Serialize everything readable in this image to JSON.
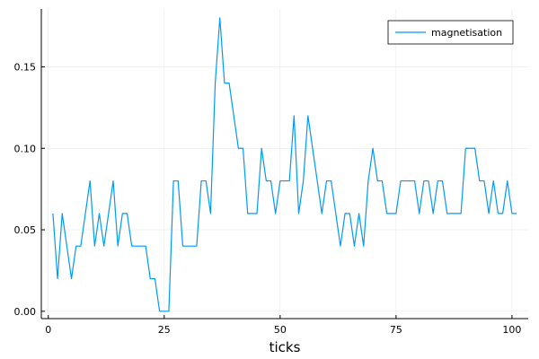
{
  "chart_data": {
    "type": "line",
    "title": "",
    "xlabel": "ticks",
    "ylabel": "",
    "xlim": [
      -1.5,
      103.5
    ],
    "ylim": [
      -0.0045,
      0.1855
    ],
    "xticks": [
      0,
      25,
      50,
      75,
      100
    ],
    "xtick_labels": [
      "0",
      "25",
      "50",
      "75",
      "100"
    ],
    "yticks": [
      0.0,
      0.05,
      0.1,
      0.15
    ],
    "ytick_labels": [
      "0.00",
      "0.05",
      "0.10",
      "0.15"
    ],
    "grid": true,
    "legend_position": "top-right",
    "series": [
      {
        "name": "magnetisation",
        "color": "#009AFA",
        "x": [
          1,
          2,
          3,
          4,
          5,
          6,
          7,
          8,
          9,
          10,
          11,
          12,
          13,
          14,
          15,
          16,
          17,
          18,
          19,
          20,
          21,
          22,
          23,
          24,
          25,
          26,
          27,
          28,
          29,
          30,
          31,
          32,
          33,
          34,
          35,
          36,
          37,
          38,
          39,
          40,
          41,
          42,
          43,
          44,
          45,
          46,
          47,
          48,
          49,
          50,
          51,
          52,
          53,
          54,
          55,
          56,
          57,
          58,
          59,
          60,
          61,
          62,
          63,
          64,
          65,
          66,
          67,
          68,
          69,
          70,
          71,
          72,
          73,
          74,
          75,
          76,
          77,
          78,
          79,
          80,
          81,
          82,
          83,
          84,
          85,
          86,
          87,
          88,
          89,
          90,
          91,
          92,
          93,
          94,
          95,
          96,
          97,
          98,
          99,
          100,
          101
        ],
        "y": [
          0.06,
          0.02,
          0.06,
          0.04,
          0.02,
          0.04,
          0.04,
          0.06,
          0.08,
          0.04,
          0.06,
          0.04,
          0.06,
          0.08,
          0.04,
          0.06,
          0.06,
          0.04,
          0.04,
          0.04,
          0.04,
          0.02,
          0.02,
          0.0,
          0.0,
          0.0,
          0.08,
          0.08,
          0.04,
          0.04,
          0.04,
          0.04,
          0.08,
          0.08,
          0.06,
          0.14,
          0.18,
          0.14,
          0.14,
          0.12,
          0.1,
          0.1,
          0.06,
          0.06,
          0.06,
          0.1,
          0.08,
          0.08,
          0.06,
          0.08,
          0.08,
          0.08,
          0.12,
          0.06,
          0.08,
          0.12,
          0.1,
          0.08,
          0.06,
          0.08,
          0.08,
          0.06,
          0.04,
          0.06,
          0.06,
          0.04,
          0.06,
          0.04,
          0.08,
          0.1,
          0.08,
          0.08,
          0.06,
          0.06,
          0.06,
          0.08,
          0.08,
          0.08,
          0.08,
          0.06,
          0.08,
          0.08,
          0.06,
          0.08,
          0.08,
          0.06,
          0.06,
          0.06,
          0.06,
          0.1,
          0.1,
          0.1,
          0.08,
          0.08,
          0.06,
          0.08,
          0.06,
          0.06,
          0.08,
          0.06,
          0.06
        ]
      }
    ]
  }
}
